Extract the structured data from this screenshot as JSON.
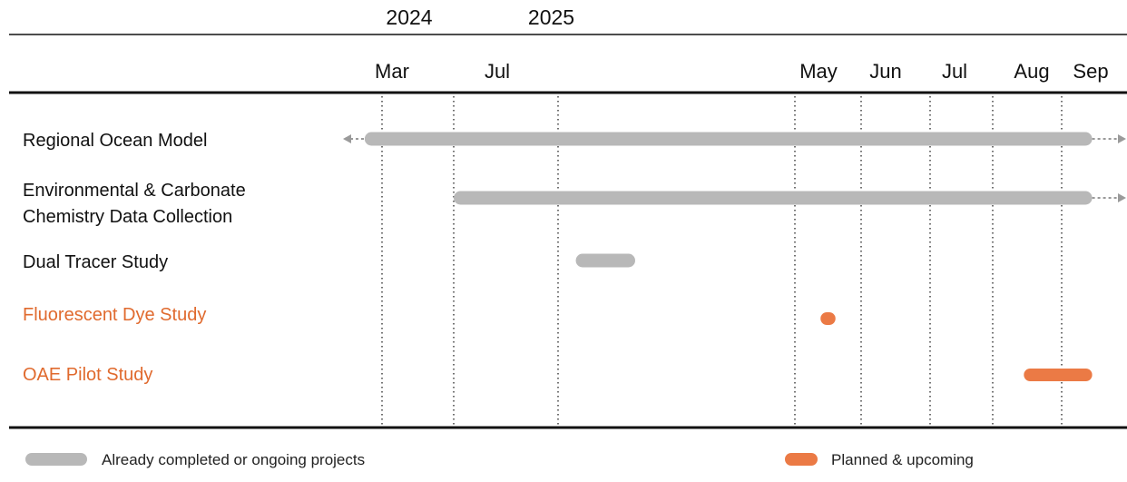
{
  "chart_data": {
    "type": "gantt",
    "title": "",
    "year_labels": [
      {
        "label": "2024",
        "date": "2024-03-01"
      },
      {
        "label": "2025",
        "date": "2024-09-01"
      }
    ],
    "month_ticks": [
      {
        "label": "Mar",
        "date": "2024-03-01"
      },
      {
        "label": "Jul",
        "date": "2024-07-01"
      },
      {
        "label": "",
        "date": "2024-10-01"
      },
      {
        "label": "May",
        "date": "2025-05-01"
      },
      {
        "label": "Jun",
        "date": "2025-06-01"
      },
      {
        "label": "Jul",
        "date": "2025-07-01"
      },
      {
        "label": "Aug",
        "date": "2025-08-01"
      },
      {
        "label": "Sep",
        "date": "2025-09-01"
      }
    ],
    "tasks": [
      {
        "name": "Regional Ocean Model",
        "start": "2024-02-15",
        "end": "2025-09-15",
        "status": "completed",
        "extends_before": true,
        "extends_after": true
      },
      {
        "name": "Environmental & Carbonate\nChemistry Data Collection",
        "start": "2024-07-01",
        "end": "2025-09-15",
        "status": "completed",
        "extends_before": false,
        "extends_after": true
      },
      {
        "name": "Dual Tracer Study",
        "start": "2024-10-15",
        "end": "2024-12-01",
        "status": "completed",
        "extends_before": false,
        "extends_after": false
      },
      {
        "name": "Fluorescent Dye Study",
        "start": "2025-05-13",
        "end": "2025-05-20",
        "status": "planned",
        "extends_before": false,
        "extends_after": false
      },
      {
        "name": "OAE Pilot Study",
        "start": "2025-08-15",
        "end": "2025-09-15",
        "status": "planned",
        "extends_before": false,
        "extends_after": false
      }
    ],
    "legend": [
      {
        "key": "completed",
        "label": "Already completed or ongoing projects",
        "color": "#b8b8b8"
      },
      {
        "key": "planned",
        "label": "Planned & upcoming",
        "color": "#eb7a45"
      }
    ],
    "colors": {
      "completed": "#b8b8b8",
      "planned": "#eb7a45",
      "completed_text": "#111111",
      "planned_text": "#e06a2e",
      "arrow": "#9a9a9a"
    },
    "grid": true
  }
}
